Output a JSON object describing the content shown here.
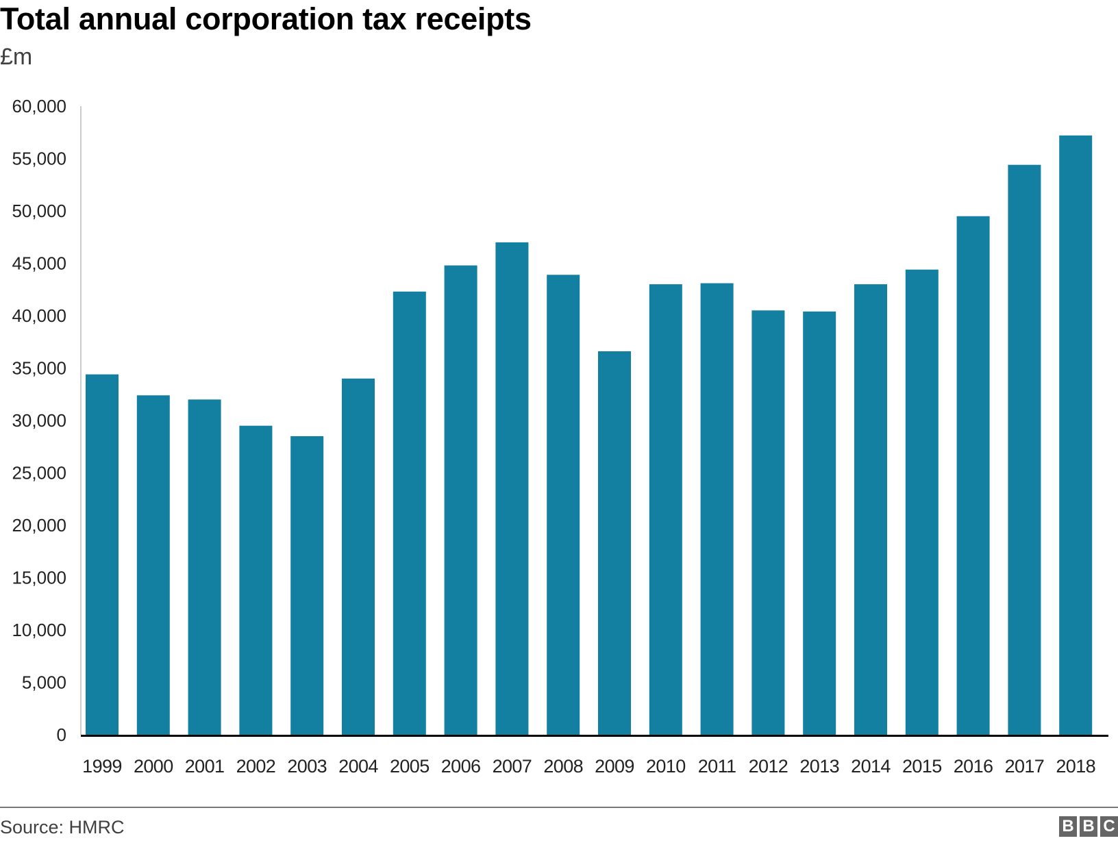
{
  "header": {
    "title": "Total annual corporation tax receipts",
    "subtitle": "£m"
  },
  "footer": {
    "source": "Source: HMRC",
    "logo_letters": [
      "B",
      "B",
      "C"
    ]
  },
  "colors": {
    "bar": "#1380a1",
    "baseline": "#000000",
    "axis": "#cccccc",
    "footer_rule": "#777777",
    "logo": "#666666"
  },
  "chart_data": {
    "type": "bar",
    "title": "Total annual corporation tax receipts",
    "subtitle": "£m",
    "xlabel": "",
    "ylabel": "£m",
    "categories": [
      "1999",
      "2000",
      "2001",
      "2002",
      "2003",
      "2004",
      "2005",
      "2006",
      "2007",
      "2008",
      "2009",
      "2010",
      "2011",
      "2012",
      "2013",
      "2014",
      "2015",
      "2016",
      "2017",
      "2018"
    ],
    "values": [
      34400,
      32400,
      32000,
      29500,
      28500,
      34000,
      42300,
      44800,
      47000,
      43900,
      36600,
      43000,
      43100,
      40500,
      40400,
      43000,
      44400,
      49500,
      54400,
      57200
    ],
    "ylim": [
      0,
      60000
    ],
    "yticks": [
      0,
      5000,
      10000,
      15000,
      20000,
      25000,
      30000,
      35000,
      40000,
      45000,
      50000,
      55000,
      60000
    ],
    "ytick_labels": [
      "0",
      "5,000",
      "10,000",
      "15,000",
      "20,000",
      "25,000",
      "30,000",
      "35,000",
      "40,000",
      "45,000",
      "50,000",
      "55,000",
      "60,000"
    ],
    "grid": false,
    "legend": "none",
    "source": "Source: HMRC"
  }
}
